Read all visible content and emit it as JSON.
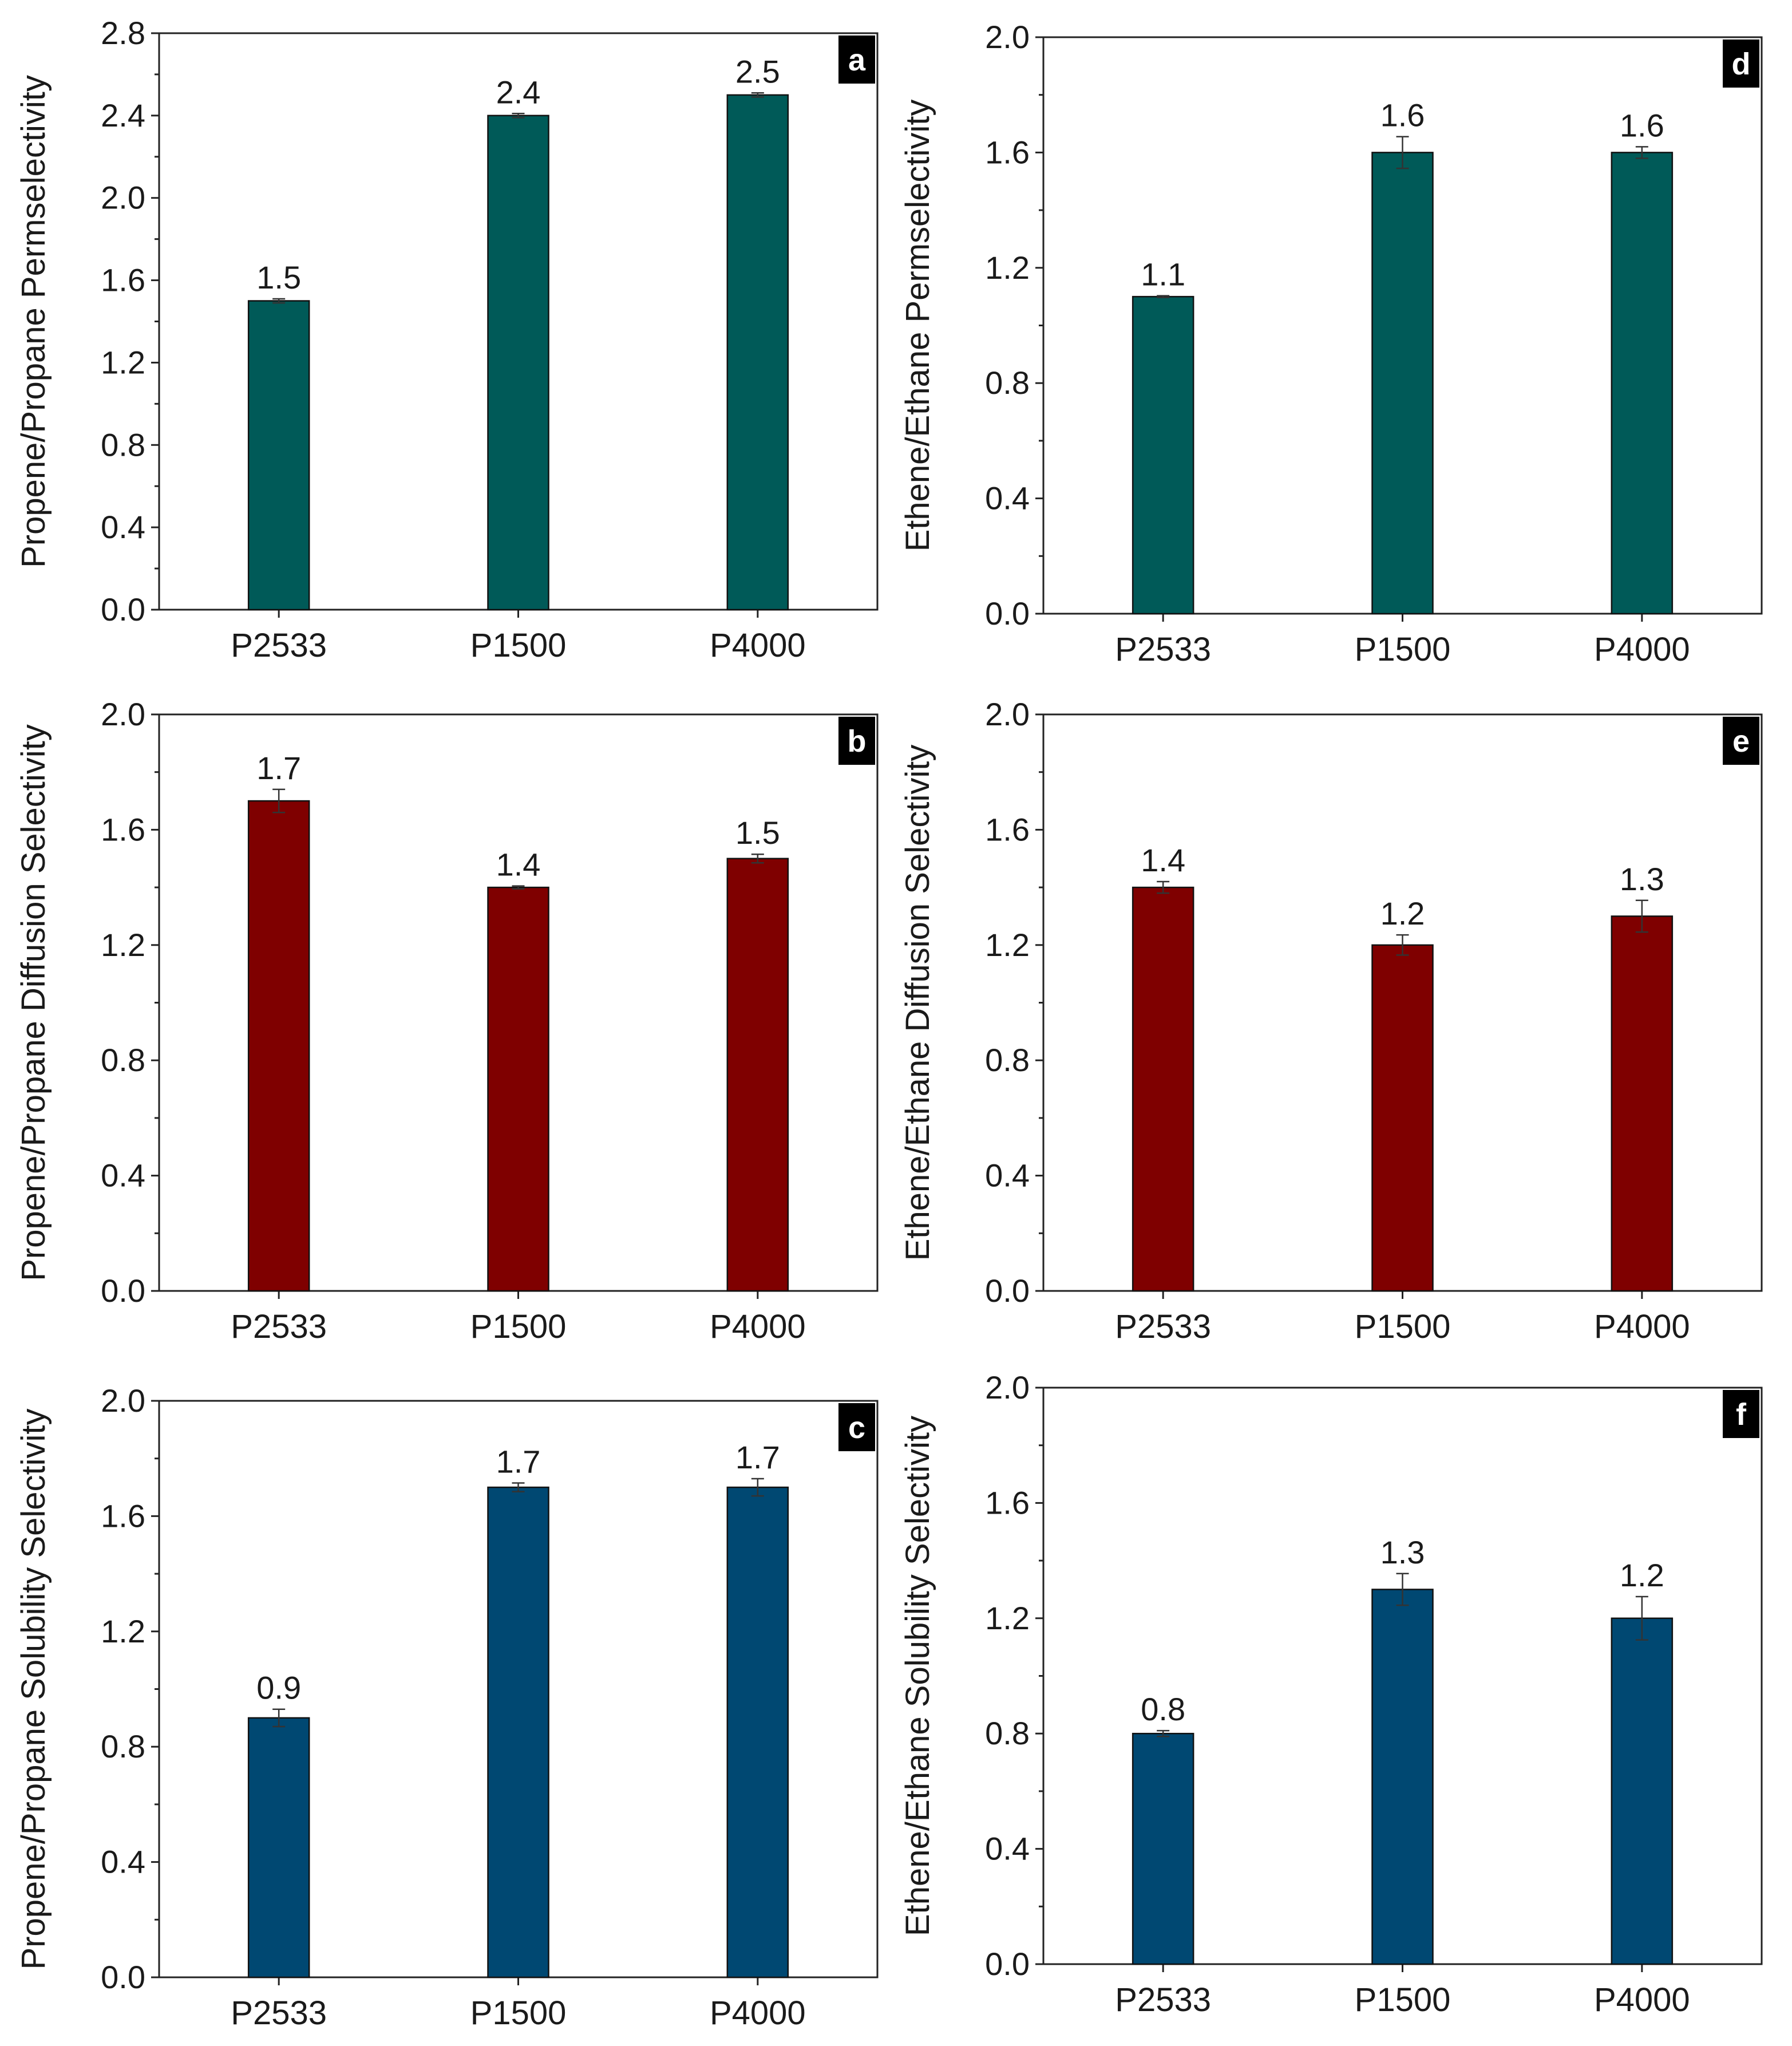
{
  "chart_data": [
    {
      "panel": "a",
      "type": "bar",
      "ylabel": "Propene/Propane Permselectivity",
      "categories": [
        "P2533",
        "P1500",
        "P4000"
      ],
      "values": [
        1.5,
        2.4,
        2.5
      ],
      "errors": [
        0.01,
        0.01,
        0.01
      ],
      "value_labels": [
        "1.5",
        "2.4",
        "2.5"
      ],
      "ylim": [
        0,
        2.8
      ],
      "yticks": [
        "0.0",
        "0.4",
        "0.8",
        "1.2",
        "1.6",
        "2.0",
        "2.4",
        "2.8"
      ],
      "color": "#005a58"
    },
    {
      "panel": "b",
      "type": "bar",
      "ylabel": "Propene/Propane Diffusion Selectivity",
      "categories": [
        "P2533",
        "P1500",
        "P4000"
      ],
      "values": [
        1.7,
        1.4,
        1.5
      ],
      "errors": [
        0.04,
        0.005,
        0.015
      ],
      "value_labels": [
        "1.7",
        "1.4",
        "1.5"
      ],
      "ylim": [
        0,
        2.0
      ],
      "yticks": [
        "0.0",
        "0.4",
        "0.8",
        "1.2",
        "1.6",
        "2.0"
      ],
      "color": "#7f0000"
    },
    {
      "panel": "c",
      "type": "bar",
      "ylabel": "Propene/Propane Solubility Selectivity",
      "categories": [
        "P2533",
        "P1500",
        "P4000"
      ],
      "values": [
        0.9,
        1.7,
        1.7
      ],
      "errors": [
        0.03,
        0.015,
        0.03
      ],
      "value_labels": [
        "0.9",
        "1.7",
        "1.7"
      ],
      "ylim": [
        0,
        2.0
      ],
      "yticks": [
        "0.0",
        "0.4",
        "0.8",
        "1.2",
        "1.6",
        "2.0"
      ],
      "color": "#004872"
    },
    {
      "panel": "d",
      "type": "bar",
      "ylabel": "Ethene/Ethane Permselectivity",
      "categories": [
        "P2533",
        "P1500",
        "P4000"
      ],
      "values": [
        1.1,
        1.6,
        1.6
      ],
      "errors": [
        0.003,
        0.055,
        0.02
      ],
      "value_labels": [
        "1.1",
        "1.6",
        "1.6"
      ],
      "ylim": [
        0,
        2.0
      ],
      "yticks": [
        "0.0",
        "0.4",
        "0.8",
        "1.2",
        "1.6",
        "2.0"
      ],
      "color": "#005a58"
    },
    {
      "panel": "e",
      "type": "bar",
      "ylabel": "Ethene/Ethane Diffusion Selectivity",
      "categories": [
        "P2533",
        "P1500",
        "P4000"
      ],
      "values": [
        1.4,
        1.2,
        1.3
      ],
      "errors": [
        0.02,
        0.035,
        0.055
      ],
      "value_labels": [
        "1.4",
        "1.2",
        "1.3"
      ],
      "ylim": [
        0,
        2.0
      ],
      "yticks": [
        "0.0",
        "0.4",
        "0.8",
        "1.2",
        "1.6",
        "2.0"
      ],
      "color": "#7f0000"
    },
    {
      "panel": "f",
      "type": "bar",
      "ylabel": "Ethene/Ethane Solubility Selectivity",
      "categories": [
        "P2533",
        "P1500",
        "P4000"
      ],
      "values": [
        0.8,
        1.3,
        1.2
      ],
      "errors": [
        0.01,
        0.055,
        0.075
      ],
      "value_labels": [
        "0.8",
        "1.3",
        "1.2"
      ],
      "ylim": [
        0,
        2.0
      ],
      "yticks": [
        "0.0",
        "0.4",
        "0.8",
        "1.2",
        "1.6",
        "2.0"
      ],
      "color": "#004872"
    }
  ]
}
